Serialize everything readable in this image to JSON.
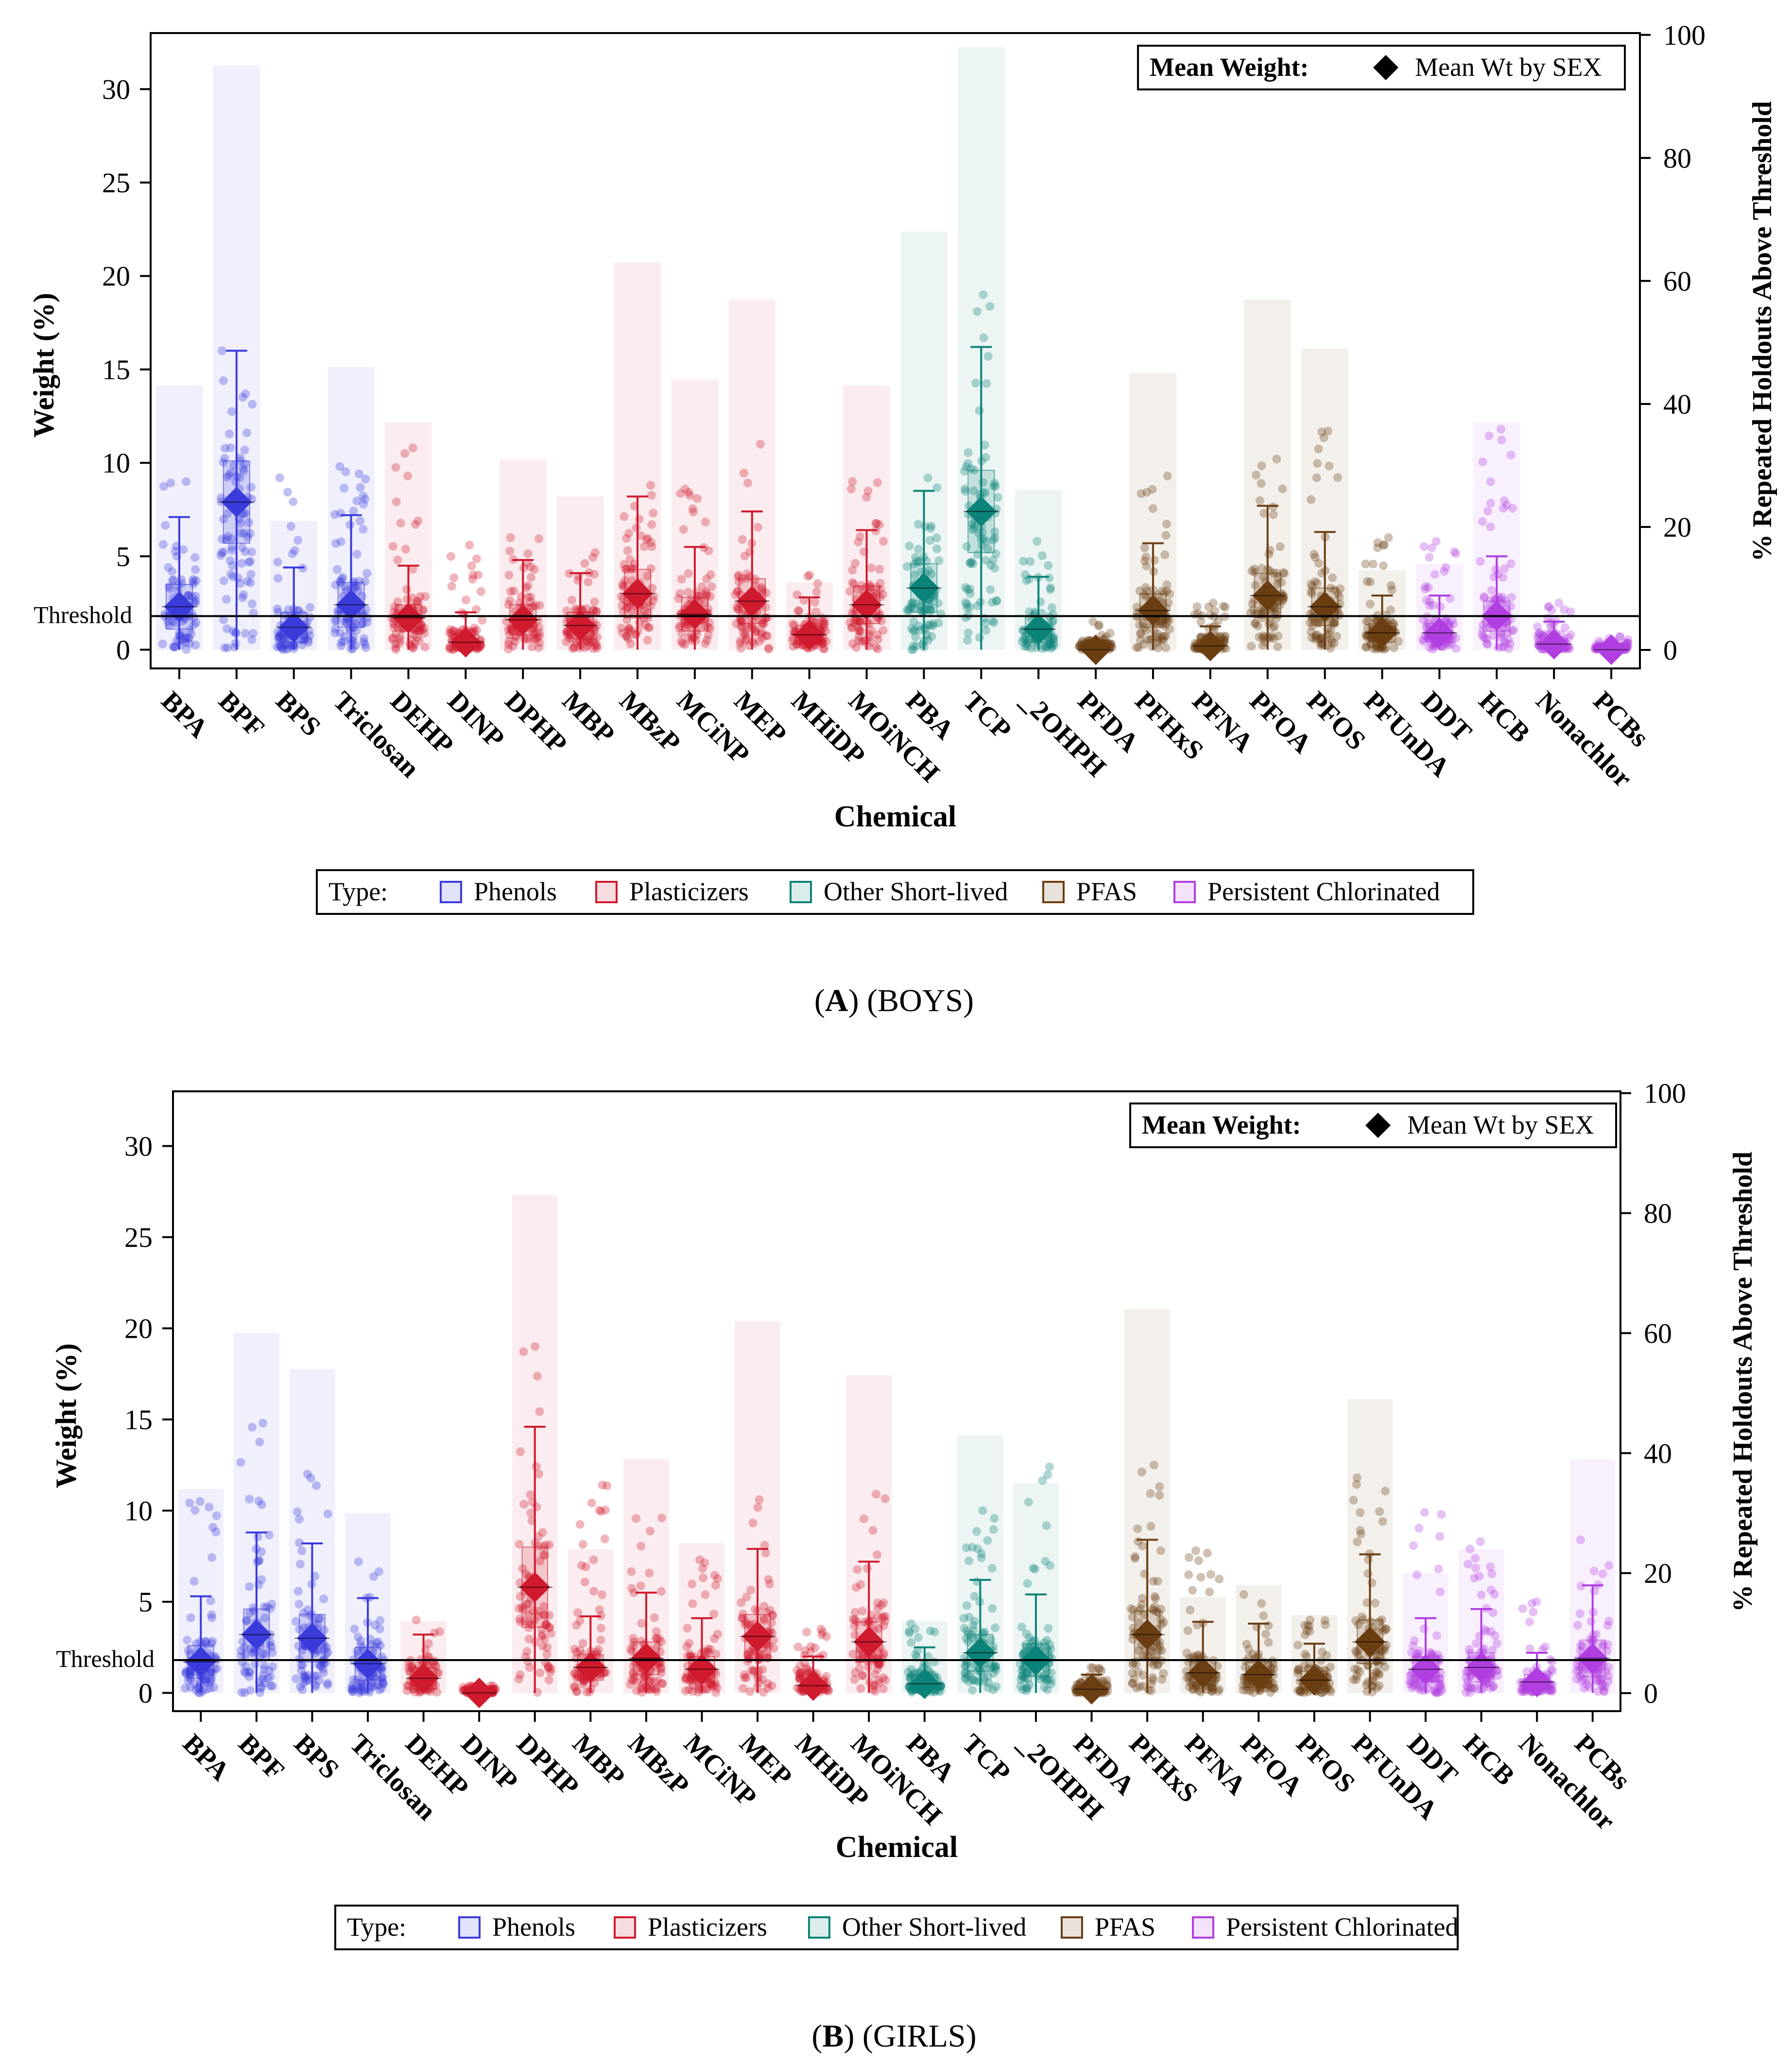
{
  "figure": {
    "colors": {
      "Phenols": "#3b3bdc",
      "Plasticizers": "#d01a2e",
      "Other Short-lived": "#0b8378",
      "PFAS": "#6b3e12",
      "Persistent Chlorinated": "#b03ee0",
      "mean_marker": "#000000"
    }
  },
  "chart_data": [
    {
      "type": "bar",
      "panel_label": "A",
      "caption": "(BOYS)",
      "xlabel": "Chemical",
      "ylabel": "Weight (%)",
      "y2label": "% Repeated Holdouts Above Threshold",
      "ylim": [
        -1,
        33
      ],
      "y2lim": [
        -3.0,
        100.3
      ],
      "yticks": [
        0,
        5,
        10,
        15,
        20,
        25,
        30
      ],
      "y2ticks": [
        0,
        20,
        40,
        60,
        80,
        100
      ],
      "threshold_value": 1.8,
      "threshold_label": "Threshold",
      "mean_legend_title": "Mean Weight:",
      "mean_legend_entry": "Mean Wt by SEX",
      "type_legend_title": "Type:",
      "type_legend": [
        "Phenols",
        "Plasticizers",
        "Other Short-lived",
        "PFAS",
        "Persistent Chlorinated"
      ],
      "categories": [
        "BPA",
        "BPF",
        "BPS",
        "Triclosan",
        "DEHP",
        "DINP",
        "DPHP",
        "MBP",
        "MBzP",
        "MCiNP",
        "MEP",
        "MHiDP",
        "MOiNCH",
        "PBA",
        "TCP",
        "_2OHPH",
        "PFDA",
        "PFHxS",
        "PFNA",
        "PFOA",
        "PFOS",
        "PFUnDA",
        "DDT",
        "HCB",
        "Nonachlor",
        "PCBs"
      ],
      "chem_types": [
        "Phenols",
        "Phenols",
        "Phenols",
        "Phenols",
        "Plasticizers",
        "Plasticizers",
        "Plasticizers",
        "Plasticizers",
        "Plasticizers",
        "Plasticizers",
        "Plasticizers",
        "Plasticizers",
        "Plasticizers",
        "Other Short-lived",
        "Other Short-lived",
        "Other Short-lived",
        "PFAS",
        "PFAS",
        "PFAS",
        "PFAS",
        "PFAS",
        "PFAS",
        "Persistent Chlorinated",
        "Persistent Chlorinated",
        "Persistent Chlorinated",
        "Persistent Chlorinated"
      ],
      "mean_weight": [
        2.3,
        7.9,
        1.2,
        2.4,
        1.7,
        0.4,
        1.6,
        1.3,
        3.0,
        1.9,
        2.6,
        0.8,
        2.4,
        3.3,
        7.4,
        1.1,
        0.0,
        2.1,
        0.2,
        2.9,
        2.3,
        0.9,
        0.9,
        1.8,
        0.3,
        0.0
      ],
      "pct_holdouts_above_threshold": [
        43,
        95,
        21,
        46,
        37,
        0,
        31,
        25,
        63,
        44,
        57,
        11,
        43,
        68,
        98,
        26,
        0,
        45,
        0,
        57,
        49,
        13,
        14,
        37,
        0,
        0
      ],
      "max_weight": [
        9.0,
        16.0,
        9.2,
        9.8,
        10.8,
        5.6,
        6.0,
        5.2,
        8.8,
        8.6,
        11.0,
        4.0,
        9.0,
        9.2,
        19.0,
        5.8,
        1.5,
        9.3,
        2.5,
        10.2,
        11.7,
        6.0,
        5.8,
        11.8,
        2.5,
        0.7
      ],
      "q3_weight": [
        3.5,
        10.1,
        2.0,
        3.6,
        2.4,
        0.8,
        2.4,
        2.0,
        4.3,
        2.8,
        3.8,
        1.3,
        3.4,
        4.6,
        9.6,
        1.8,
        0.2,
        3.0,
        0.5,
        4.1,
        3.3,
        1.4,
        1.4,
        2.6,
        0.6,
        0.1
      ]
    },
    {
      "type": "bar",
      "panel_label": "B",
      "caption": "(GIRLS)",
      "xlabel": "Chemical",
      "ylabel": "Weight (%)",
      "y2label": "% Repeated Holdouts Above Threshold",
      "ylim": [
        -1,
        33
      ],
      "y2lim": [
        -3.0,
        100.3
      ],
      "yticks": [
        0,
        5,
        10,
        15,
        20,
        25,
        30
      ],
      "y2ticks": [
        0,
        20,
        40,
        60,
        80,
        100
      ],
      "threshold_value": 1.8,
      "threshold_label": "Threshold",
      "mean_legend_title": "Mean Weight:",
      "mean_legend_entry": "Mean Wt by SEX",
      "type_legend_title": "Type:",
      "type_legend": [
        "Phenols",
        "Plasticizers",
        "Other Short-lived",
        "PFAS",
        "Persistent Chlorinated"
      ],
      "categories": [
        "BPA",
        "BPF",
        "BPS",
        "Triclosan",
        "DEHP",
        "DINP",
        "DPHP",
        "MBP",
        "MBzP",
        "MCiNP",
        "MEP",
        "MHiDP",
        "MOiNCH",
        "PBA",
        "TCP",
        "_2OHPH",
        "PFDA",
        "PFHxS",
        "PFNA",
        "PFOA",
        "PFOS",
        "PFUnDA",
        "DDT",
        "HCB",
        "Nonachlor",
        "PCBs"
      ],
      "chem_types": [
        "Phenols",
        "Phenols",
        "Phenols",
        "Phenols",
        "Plasticizers",
        "Plasticizers",
        "Plasticizers",
        "Plasticizers",
        "Plasticizers",
        "Plasticizers",
        "Plasticizers",
        "Plasticizers",
        "Plasticizers",
        "Other Short-lived",
        "Other Short-lived",
        "Other Short-lived",
        "PFAS",
        "PFAS",
        "PFAS",
        "PFAS",
        "PFAS",
        "PFAS",
        "Persistent Chlorinated",
        "Persistent Chlorinated",
        "Persistent Chlorinated",
        "Persistent Chlorinated"
      ],
      "mean_weight": [
        1.7,
        3.2,
        3.0,
        1.6,
        0.8,
        0.0,
        5.8,
        1.4,
        1.9,
        1.3,
        3.1,
        0.4,
        2.8,
        0.5,
        2.2,
        1.8,
        0.2,
        3.2,
        1.1,
        1.0,
        0.7,
        2.8,
        1.3,
        1.4,
        0.6,
        1.9
      ],
      "pct_holdouts_above_threshold": [
        34,
        60,
        54,
        30,
        12,
        0,
        83,
        24,
        39,
        25,
        62,
        0,
        53,
        12,
        43,
        35,
        0,
        64,
        16,
        18,
        13,
        49,
        20,
        24,
        0,
        39
      ],
      "max_weight": [
        10.5,
        14.8,
        12.0,
        7.2,
        4.0,
        0.4,
        19.0,
        11.4,
        9.6,
        7.3,
        10.6,
        3.5,
        10.9,
        3.8,
        10.0,
        12.4,
        1.4,
        12.5,
        7.8,
        5.4,
        4.0,
        11.8,
        9.9,
        8.3,
        5.0,
        8.4
      ],
      "q3_weight": [
        2.6,
        4.6,
        4.3,
        2.5,
        1.4,
        0.1,
        8.0,
        2.1,
        2.8,
        2.0,
        4.3,
        0.8,
        3.9,
        1.0,
        3.2,
        2.7,
        0.4,
        4.5,
        1.8,
        1.7,
        1.2,
        4.0,
        2.0,
        2.2,
        1.0,
        2.9
      ]
    }
  ]
}
